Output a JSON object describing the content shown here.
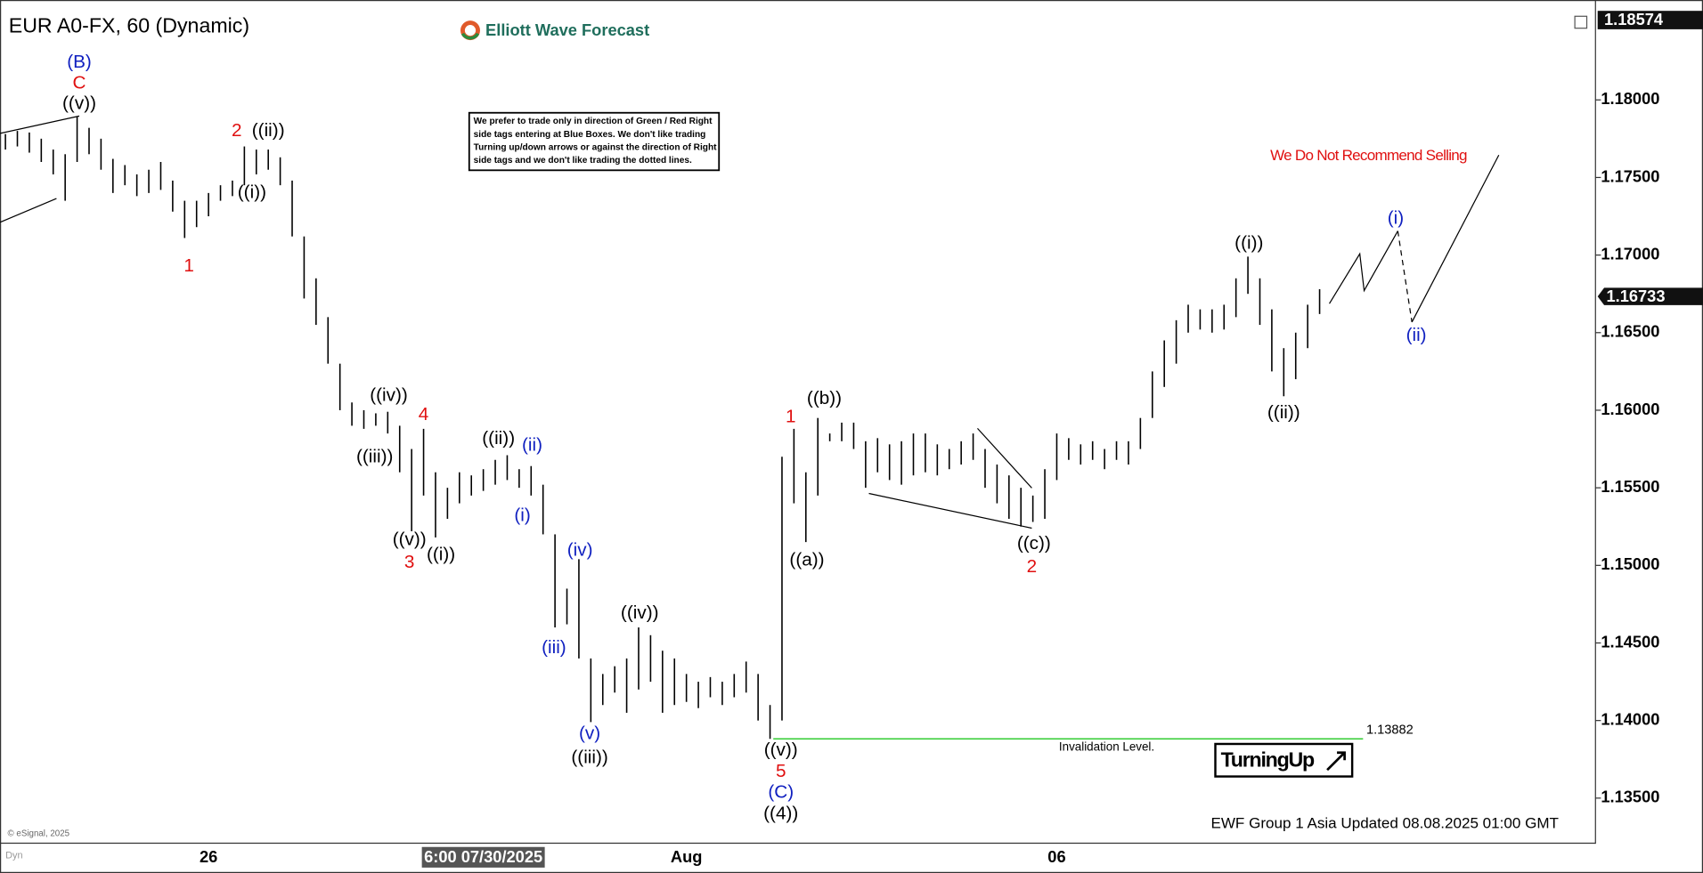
{
  "chart_data": {
    "type": "ohlc",
    "title": "EUR A0-FX, 60 (Dynamic)",
    "brand": "Elliott Wave Forecast",
    "note_lines": [
      "We prefer to trade only in direction of Green / Red Right",
      "side tags entering at Blue Boxes. We don't like trading",
      "Turning up/down arrows or against the direction of Right",
      "side tags and we don't like trading the dotted lines."
    ],
    "badge": "TurningUp",
    "footer": "EWF Group 1 Asia Updated 08.08.2025 01:00 GMT",
    "copyright": "© eSignal, 2025",
    "corner_label": "Dyn",
    "color": "#000000",
    "grid": false,
    "ylim": [
      1.1322,
      1.18574
    ],
    "yticks": [
      {
        "value": 1.135,
        "label": "1.13500"
      },
      {
        "value": 1.14,
        "label": "1.14000"
      },
      {
        "value": 1.145,
        "label": "1.14500"
      },
      {
        "value": 1.15,
        "label": "1.15000"
      },
      {
        "value": 1.155,
        "label": "1.15500"
      },
      {
        "value": 1.16,
        "label": "1.16000"
      },
      {
        "value": 1.165,
        "label": "1.16500"
      },
      {
        "value": 1.17,
        "label": "1.17000"
      },
      {
        "value": 1.175,
        "label": "1.17500"
      },
      {
        "value": 1.18,
        "label": "1.18000"
      }
    ],
    "last_price": 1.16733,
    "invalidation_level": 1.13882,
    "invalidation_text": "Invalidation Level.",
    "invalidation_color": "#33cc33",
    "categories": [
      null,
      null,
      null,
      null,
      null,
      null,
      null,
      null,
      null,
      null,
      null,
      null,
      null,
      null,
      null,
      null,
      null,
      "26",
      null,
      null,
      null,
      null,
      null,
      null,
      null,
      null,
      null,
      null,
      null,
      null,
      null,
      null,
      null,
      null,
      null,
      null,
      null,
      null,
      null,
      null,
      "6:00 07/30/2025",
      null,
      null,
      null,
      null,
      null,
      null,
      null,
      null,
      null,
      null,
      null,
      null,
      null,
      null,
      null,
      null,
      "Aug",
      null,
      null,
      null,
      null,
      null,
      null,
      null,
      null,
      null,
      null,
      null,
      null,
      null,
      null,
      null,
      null,
      null,
      null,
      null,
      null,
      null,
      null,
      null,
      null,
      null,
      null,
      null,
      null,
      null,
      null,
      "06",
      null,
      null,
      null,
      null,
      null,
      null,
      null,
      null,
      null,
      null,
      null,
      null,
      null,
      null,
      null,
      null,
      null,
      null,
      null,
      null,
      null,
      null
    ],
    "high": [
      1.1778,
      1.178,
      1.1779,
      1.1775,
      1.1768,
      1.1765,
      1.1789,
      1.1782,
      1.1775,
      1.1762,
      1.1758,
      1.1752,
      1.1755,
      1.176,
      1.1748,
      1.1735,
      1.1735,
      1.174,
      1.1745,
      1.1748,
      1.177,
      1.1768,
      1.1768,
      1.1763,
      1.1748,
      1.1712,
      1.1685,
      1.166,
      1.163,
      1.1605,
      1.16,
      1.1598,
      1.1599,
      1.159,
      1.1575,
      1.1588,
      1.156,
      1.155,
      1.156,
      1.1558,
      1.1562,
      1.1568,
      1.1571,
      1.1562,
      1.1564,
      1.1552,
      1.152,
      1.1485,
      1.1504,
      1.144,
      1.143,
      1.1435,
      1.144,
      1.146,
      1.1455,
      1.1445,
      1.144,
      1.143,
      1.1425,
      1.1428,
      1.1425,
      1.143,
      1.1438,
      1.143,
      1.141,
      1.157,
      1.1588,
      1.156,
      1.1595,
      1.1585,
      1.1592,
      1.1592,
      1.158,
      1.1582,
      1.1578,
      1.158,
      1.1585,
      1.1585,
      1.1578,
      1.1575,
      1.158,
      1.1585,
      1.1575,
      1.1565,
      1.1558,
      1.155,
      1.1545,
      1.1562,
      1.1585,
      1.1582,
      1.1578,
      1.158,
      1.1575,
      1.158,
      1.158,
      1.1595,
      1.1625,
      1.1645,
      1.1658,
      1.1668,
      1.1665,
      1.1665,
      1.1668,
      1.1685,
      1.1699,
      1.1685,
      1.1665,
      1.164,
      1.165,
      1.1668,
      1.1678
    ],
    "low": [
      1.1768,
      1.177,
      1.1766,
      1.176,
      1.1752,
      1.1735,
      1.176,
      1.1765,
      1.1755,
      1.174,
      1.1745,
      1.1738,
      1.174,
      1.1742,
      1.1728,
      1.1711,
      1.1718,
      1.1725,
      1.1735,
      1.1738,
      1.1745,
      1.1752,
      1.1755,
      1.1745,
      1.1712,
      1.1672,
      1.1655,
      1.163,
      1.16,
      1.159,
      1.1588,
      1.159,
      1.1585,
      1.156,
      1.1522,
      1.1545,
      1.1518,
      1.153,
      1.154,
      1.1545,
      1.1548,
      1.1552,
      1.1555,
      1.155,
      1.1545,
      1.152,
      1.146,
      1.1462,
      1.144,
      1.1399,
      1.141,
      1.1418,
      1.1405,
      1.142,
      1.1425,
      1.1405,
      1.141,
      1.1412,
      1.1408,
      1.1415,
      1.141,
      1.1415,
      1.1418,
      1.14,
      1.13882,
      1.14,
      1.154,
      1.1515,
      1.1545,
      1.158,
      1.158,
      1.1575,
      1.155,
      1.156,
      1.1555,
      1.1552,
      1.1558,
      1.156,
      1.1558,
      1.1562,
      1.1565,
      1.1568,
      1.155,
      1.154,
      1.153,
      1.1525,
      1.1528,
      1.153,
      1.1555,
      1.1568,
      1.1565,
      1.1568,
      1.1562,
      1.1568,
      1.1565,
      1.1575,
      1.1595,
      1.1615,
      1.163,
      1.165,
      1.1652,
      1.165,
      1.1652,
      1.166,
      1.1675,
      1.1655,
      1.1625,
      1.1609,
      1.162,
      1.164,
      1.1662
    ],
    "annotations": [
      {
        "text": "(B)",
        "color": "#1020c0"
      },
      {
        "text": "C",
        "color": "#e01010"
      },
      {
        "text": "((v))",
        "color": "#000000"
      },
      {
        "text": "2",
        "color": "#e01010"
      },
      {
        "text": "((ii))",
        "color": "#000000"
      },
      {
        "text": "((i))",
        "color": "#000000"
      },
      {
        "text": "1",
        "color": "#e01010"
      },
      {
        "text": "((iv))",
        "color": "#000000"
      },
      {
        "text": "4",
        "color": "#e01010"
      },
      {
        "text": "((iii))",
        "color": "#000000"
      },
      {
        "text": "((v))",
        "color": "#000000"
      },
      {
        "text": "3",
        "color": "#e01010"
      },
      {
        "text": "((i))",
        "color": "#000000"
      },
      {
        "text": "((ii))",
        "color": "#000000"
      },
      {
        "text": "(ii)",
        "color": "#1020c0"
      },
      {
        "text": "(i)",
        "color": "#1020c0"
      },
      {
        "text": "(iv)",
        "color": "#1020c0"
      },
      {
        "text": "(iii)",
        "color": "#1020c0"
      },
      {
        "text": "(v)",
        "color": "#1020c0"
      },
      {
        "text": "((iii))",
        "color": "#000000"
      },
      {
        "text": "((iv))",
        "color": "#000000"
      },
      {
        "text": "((v))",
        "color": "#000000"
      },
      {
        "text": "5",
        "color": "#e01010"
      },
      {
        "text": "(C)",
        "color": "#1020c0"
      },
      {
        "text": "((4))",
        "color": "#000000"
      },
      {
        "text": "1",
        "color": "#e01010"
      },
      {
        "text": "((b))",
        "color": "#000000"
      },
      {
        "text": "((a))",
        "color": "#000000"
      },
      {
        "text": "((c))",
        "color": "#000000"
      },
      {
        "text": "2",
        "color": "#e01010"
      },
      {
        "text": "((i))",
        "color": "#000000"
      },
      {
        "text": "((ii))",
        "color": "#000000"
      },
      {
        "text": "(i)",
        "color": "#1020c0"
      },
      {
        "text": "(ii)",
        "color": "#1020c0"
      },
      {
        "text": "We Do Not Recommend Selling",
        "color": "#e01010"
      }
    ]
  }
}
